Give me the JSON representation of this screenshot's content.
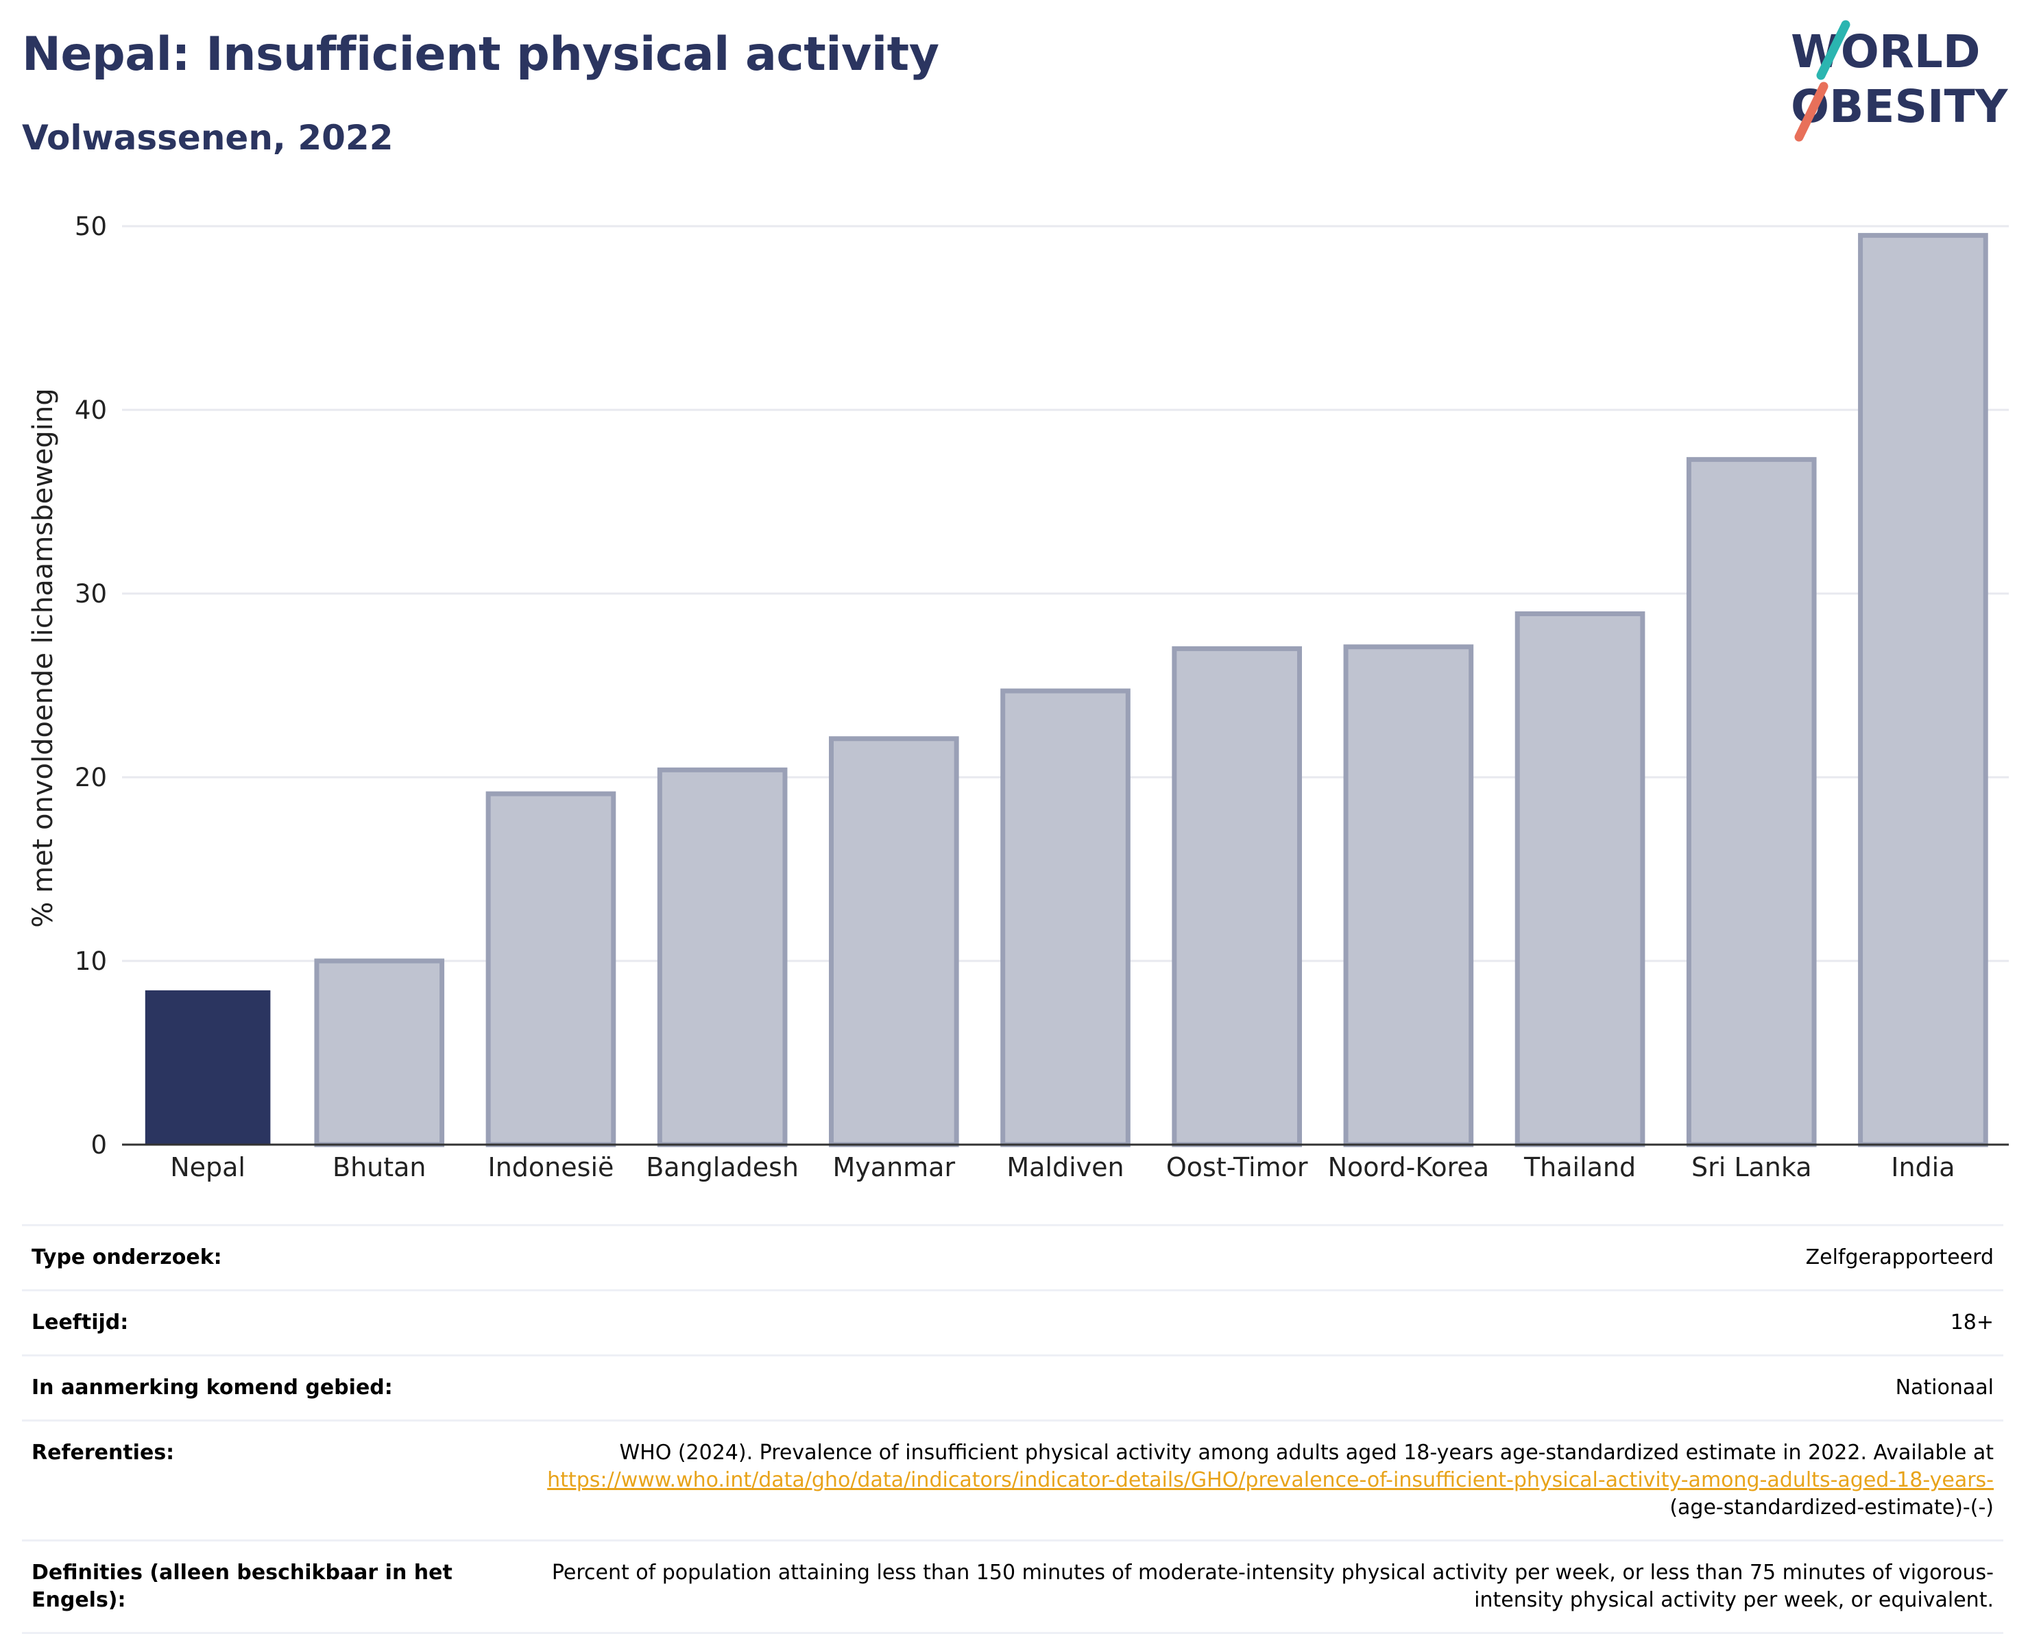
{
  "header": {
    "title": "Nepal: Insufficient physical activity",
    "subtitle": "Volwassenen, 2022"
  },
  "logo": {
    "line1": "WORLD",
    "line2": "OBESITY",
    "accent_teal": "#2bb5b0",
    "accent_coral": "#e8705a",
    "text_color": "#2b3560"
  },
  "colors": {
    "highlight_bar": "#2b3560",
    "other_bar": "#bfc3d0",
    "other_bar_border": "#9aa0b6",
    "gridline": "#e8e9ef",
    "link": "#e8a31a"
  },
  "chart_data": {
    "type": "bar",
    "categories": [
      "Nepal",
      "Bhutan",
      "Indonesië",
      "Bangladesh",
      "Myanmar",
      "Maldiven",
      "Oost-Timor",
      "Noord-Korea",
      "Thailand",
      "Sri Lanka",
      "India"
    ],
    "values": [
      8.4,
      10.0,
      19.1,
      20.4,
      22.1,
      24.7,
      27.0,
      27.1,
      28.9,
      37.3,
      49.5
    ],
    "highlight_index": 0,
    "title": "Nepal: Insufficient physical activity",
    "subtitle": "Volwassenen, 2022",
    "xlabel": "",
    "ylabel": "% met onvoldoende lichaamsbeweging",
    "ylim": [
      0,
      50
    ],
    "yticks": [
      0,
      10,
      20,
      30,
      40,
      50
    ],
    "grid": true
  },
  "meta": {
    "rows": [
      {
        "key": "Type onderzoek:",
        "value": "Zelfgerapporteerd"
      },
      {
        "key": "Leeftijd:",
        "value": "18+"
      },
      {
        "key": "In aanmerking komend gebied:",
        "value": "Nationaal"
      }
    ],
    "references": {
      "key": "Referenties:",
      "text": "WHO (2024). Prevalence of insufficient physical activity among adults aged 18-years age-standardized estimate in 2022. Available at",
      "link": "https://www.who.int/data/gho/data/indicators/indicator-details/GHO/prevalence-of-insufficient-physical-activity-among-adults-aged-18-years-",
      "suffix": "(age-standardized-estimate)-(-)"
    },
    "definitions": {
      "key": "Definities (alleen beschikbaar in het Engels):",
      "value": "Percent of population attaining less than 150 minutes of moderate-intensity physical activity per week, or less than 75 minutes of vigorous-intensity physical activity per week, or equivalent."
    }
  }
}
